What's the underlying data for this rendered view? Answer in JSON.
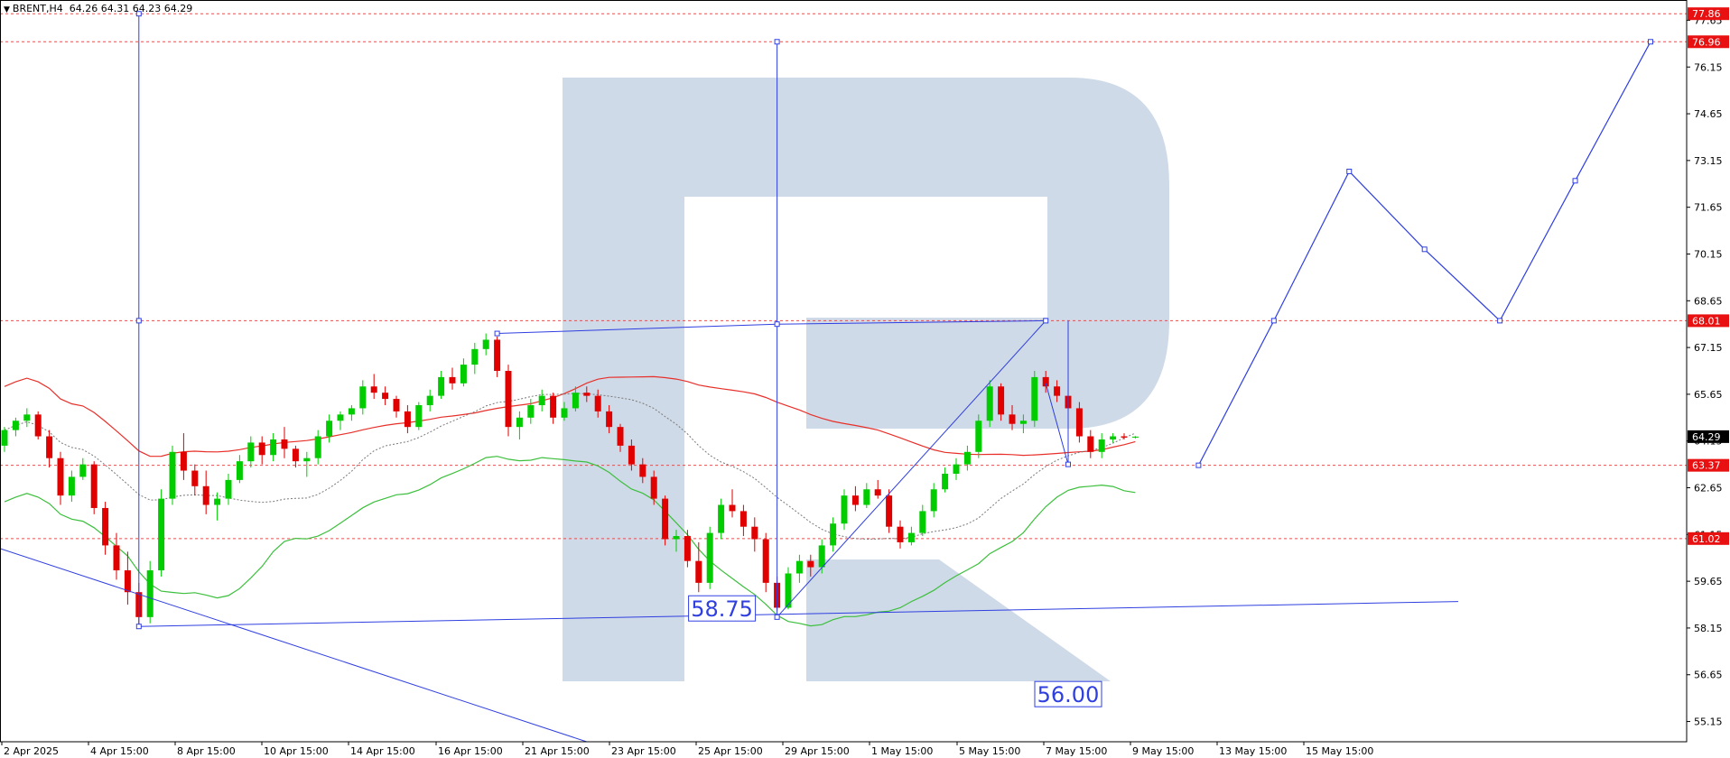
{
  "header": {
    "symbol": "BRENT,H4",
    "ohlc": "64.26 64.31 64.23 64.29"
  },
  "watermark": {
    "color": "#cfdae8",
    "icon": "roboforex-r-logo"
  },
  "colors": {
    "bull": "#00cc00",
    "bear": "#e00000",
    "ma_red": "#e8302a",
    "ma_green": "#3cbf3c",
    "ma_dotted": "#7a7a7a",
    "forecast": "#2f3fe0",
    "level_line": "#e05050",
    "level_tag": "#e81010"
  },
  "chart_data": {
    "type": "candlestick",
    "symbol": "BRENT,H4",
    "ylim": [
      54.5,
      78.3
    ],
    "y_ticks": [
      "77.65",
      "76.15",
      "74.65",
      "73.15",
      "71.65",
      "70.15",
      "68.65",
      "67.15",
      "65.65",
      "64.15",
      "62.65",
      "61.15",
      "59.65",
      "58.15",
      "56.65",
      "55.15"
    ],
    "x_ticks": [
      "2 Apr 2025",
      "4 Apr 15:00",
      "8 Apr 15:00",
      "10 Apr 15:00",
      "14 Apr 15:00",
      "16 Apr 15:00",
      "21 Apr 15:00",
      "23 Apr 15:00",
      "25 Apr 15:00",
      "29 Apr 15:00",
      "1 May 15:00",
      "5 May 15:00",
      "7 May 15:00",
      "9 May 15:00",
      "13 May 15:00",
      "15 May 15:00"
    ],
    "level_tags": [
      "77.86",
      "76.96",
      "68.01",
      "63.37",
      "61.02"
    ],
    "current_price": "64.29",
    "annotations": [
      "58.75",
      "56.00"
    ],
    "candles": [
      [
        64.0,
        64.6,
        63.8,
        64.5
      ],
      [
        64.5,
        64.9,
        64.3,
        64.8
      ],
      [
        64.8,
        65.2,
        64.6,
        65.0
      ],
      [
        65.0,
        65.1,
        64.2,
        64.3
      ],
      [
        64.3,
        64.5,
        63.3,
        63.6
      ],
      [
        63.6,
        63.8,
        62.1,
        62.4
      ],
      [
        62.4,
        63.2,
        62.2,
        63.0
      ],
      [
        63.0,
        63.6,
        62.9,
        63.4
      ],
      [
        63.4,
        63.5,
        61.8,
        62.0
      ],
      [
        62.0,
        62.2,
        60.5,
        60.8
      ],
      [
        60.8,
        61.2,
        59.7,
        60.0
      ],
      [
        60.0,
        60.6,
        58.9,
        59.3
      ],
      [
        59.3,
        59.6,
        58.2,
        58.5
      ],
      [
        58.5,
        60.3,
        58.3,
        60.0
      ],
      [
        60.0,
        62.6,
        59.8,
        62.3
      ],
      [
        62.3,
        64.0,
        62.1,
        63.8
      ],
      [
        63.8,
        64.4,
        62.9,
        63.2
      ],
      [
        63.2,
        63.4,
        62.4,
        62.7
      ],
      [
        62.7,
        63.2,
        61.8,
        62.1
      ],
      [
        62.1,
        62.5,
        61.6,
        62.3
      ],
      [
        62.3,
        63.1,
        62.1,
        62.9
      ],
      [
        62.9,
        63.7,
        62.8,
        63.5
      ],
      [
        63.5,
        64.3,
        63.3,
        64.1
      ],
      [
        64.1,
        64.3,
        63.4,
        63.7
      ],
      [
        63.7,
        64.4,
        63.5,
        64.2
      ],
      [
        64.2,
        64.6,
        63.6,
        63.9
      ],
      [
        63.9,
        64.0,
        63.3,
        63.5
      ],
      [
        63.5,
        63.8,
        63.0,
        63.6
      ],
      [
        63.6,
        64.5,
        63.4,
        64.3
      ],
      [
        64.3,
        65.0,
        64.1,
        64.8
      ],
      [
        64.8,
        65.1,
        64.5,
        65.0
      ],
      [
        65.0,
        65.3,
        64.8,
        65.2
      ],
      [
        65.2,
        66.1,
        65.0,
        65.9
      ],
      [
        65.9,
        66.3,
        65.5,
        65.7
      ],
      [
        65.7,
        65.9,
        65.3,
        65.5
      ],
      [
        65.5,
        65.6,
        64.9,
        65.1
      ],
      [
        65.1,
        65.3,
        64.4,
        64.6
      ],
      [
        64.6,
        65.4,
        64.5,
        65.3
      ],
      [
        65.3,
        65.8,
        65.1,
        65.6
      ],
      [
        65.6,
        66.4,
        65.5,
        66.2
      ],
      [
        66.2,
        66.5,
        65.8,
        66.0
      ],
      [
        66.0,
        66.8,
        65.9,
        66.6
      ],
      [
        66.6,
        67.3,
        66.3,
        67.1
      ],
      [
        67.1,
        67.6,
        66.9,
        67.4
      ],
      [
        67.4,
        67.5,
        66.2,
        66.4
      ],
      [
        66.4,
        66.6,
        64.3,
        64.6
      ],
      [
        64.6,
        65.1,
        64.2,
        64.9
      ],
      [
        64.9,
        65.5,
        64.7,
        65.3
      ],
      [
        65.3,
        65.8,
        65.1,
        65.6
      ],
      [
        65.6,
        65.7,
        64.7,
        64.9
      ],
      [
        64.9,
        65.4,
        64.8,
        65.2
      ],
      [
        65.2,
        65.9,
        65.1,
        65.7
      ],
      [
        65.7,
        65.9,
        65.4,
        65.6
      ],
      [
        65.6,
        65.8,
        64.9,
        65.1
      ],
      [
        65.1,
        65.3,
        64.4,
        64.6
      ],
      [
        64.6,
        64.7,
        63.8,
        64.0
      ],
      [
        64.0,
        64.2,
        63.2,
        63.4
      ],
      [
        63.4,
        63.6,
        62.8,
        63.0
      ],
      [
        63.0,
        63.2,
        62.1,
        62.3
      ],
      [
        62.3,
        62.4,
        60.8,
        61.0
      ],
      [
        61.0,
        61.3,
        60.6,
        61.1
      ],
      [
        61.1,
        61.3,
        60.1,
        60.3
      ],
      [
        60.3,
        60.9,
        59.3,
        59.6
      ],
      [
        59.6,
        61.4,
        59.4,
        61.2
      ],
      [
        61.2,
        62.3,
        61.0,
        62.1
      ],
      [
        62.1,
        62.6,
        61.7,
        61.9
      ],
      [
        61.9,
        62.1,
        61.1,
        61.4
      ],
      [
        61.4,
        61.7,
        60.6,
        61.0
      ],
      [
        61.0,
        61.2,
        59.3,
        59.6
      ],
      [
        59.6,
        59.8,
        58.7,
        58.8
      ],
      [
        58.8,
        60.1,
        58.75,
        59.9
      ],
      [
        59.9,
        60.5,
        59.6,
        60.3
      ],
      [
        60.3,
        60.5,
        59.8,
        60.1
      ],
      [
        60.1,
        61.0,
        59.9,
        60.8
      ],
      [
        60.8,
        61.7,
        60.6,
        61.5
      ],
      [
        61.5,
        62.6,
        61.3,
        62.4
      ],
      [
        62.4,
        62.7,
        61.9,
        62.1
      ],
      [
        62.1,
        62.8,
        62.0,
        62.6
      ],
      [
        62.6,
        62.9,
        62.3,
        62.4
      ],
      [
        62.4,
        62.6,
        61.2,
        61.4
      ],
      [
        61.4,
        61.6,
        60.7,
        60.9
      ],
      [
        60.9,
        61.4,
        60.8,
        61.2
      ],
      [
        61.2,
        62.1,
        61.1,
        61.9
      ],
      [
        61.9,
        62.8,
        61.7,
        62.6
      ],
      [
        62.6,
        63.3,
        62.5,
        63.1
      ],
      [
        63.1,
        63.6,
        62.9,
        63.4
      ],
      [
        63.4,
        64.0,
        63.2,
        63.8
      ],
      [
        63.8,
        65.0,
        63.6,
        64.8
      ],
      [
        64.8,
        66.1,
        64.6,
        65.9
      ],
      [
        65.9,
        66.0,
        64.8,
        65.0
      ],
      [
        65.0,
        65.3,
        64.5,
        64.7
      ],
      [
        64.7,
        65.0,
        64.4,
        64.8
      ],
      [
        64.8,
        66.4,
        64.6,
        66.2
      ],
      [
        66.2,
        66.4,
        65.7,
        65.9
      ],
      [
        65.9,
        66.1,
        65.4,
        65.6
      ],
      [
        65.6,
        65.8,
        65.0,
        65.2
      ],
      [
        65.2,
        65.4,
        64.1,
        64.3
      ],
      [
        64.3,
        64.5,
        63.6,
        63.8
      ],
      [
        63.8,
        64.4,
        63.6,
        64.2
      ],
      [
        64.2,
        64.4,
        64.1,
        64.3
      ],
      [
        64.3,
        64.4,
        64.2,
        64.26
      ],
      [
        64.26,
        64.31,
        64.23,
        64.29
      ]
    ],
    "forecast_path": [
      {
        "price": 63.37
      },
      {
        "price": 68.01
      },
      {
        "price": 72.8
      },
      {
        "price": 70.3
      },
      {
        "price": 68.01
      },
      {
        "price": 72.5
      },
      {
        "price": 76.96
      }
    ]
  }
}
